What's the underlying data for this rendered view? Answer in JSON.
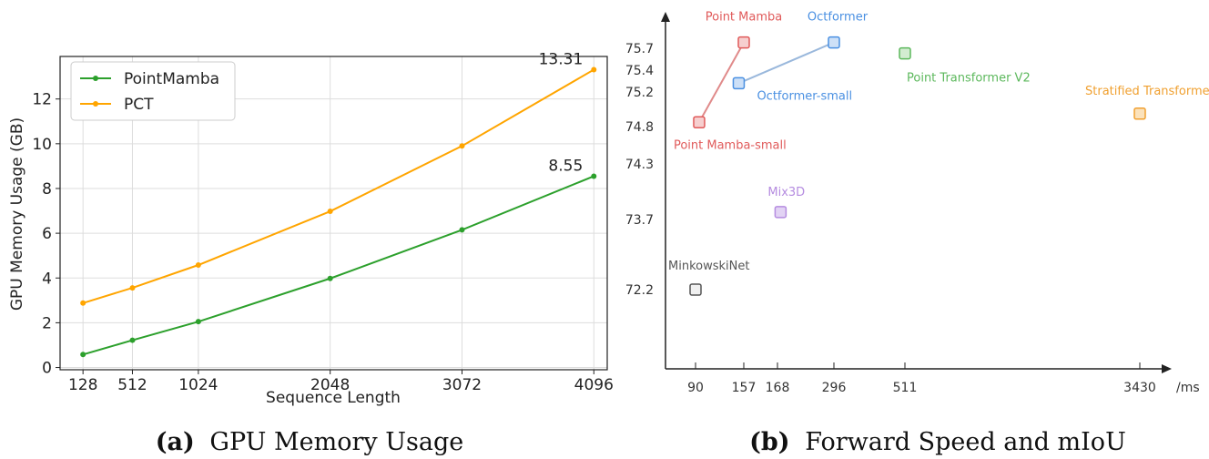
{
  "chart_data": [
    {
      "type": "line",
      "title": "",
      "caption": {
        "label": "(a)",
        "text": "GPU Memory Usage"
      },
      "xlabel": "Sequence Length",
      "ylabel": "GPU Memory Usage (GB)",
      "x": [
        128,
        512,
        1024,
        2048,
        3072,
        4096
      ],
      "x_tick_labels": [
        "128",
        "512",
        "1024",
        "2048",
        "3072",
        "4096"
      ],
      "y_ticks": [
        0,
        2,
        4,
        6,
        8,
        10,
        12
      ],
      "y_tick_labels": [
        "0",
        "2",
        "4",
        "6",
        "8",
        "10",
        "12"
      ],
      "ylim": [
        -0.1,
        13.9
      ],
      "xlim": [
        -50,
        4200
      ],
      "grid": true,
      "legend_position": "top-left",
      "series": [
        {
          "name": "PointMamba",
          "color": "#2ca02c",
          "values": [
            0.58,
            1.22,
            2.05,
            3.98,
            6.15,
            8.55
          ],
          "end_label": "8.55"
        },
        {
          "name": "PCT",
          "color": "#ffa500",
          "values": [
            2.88,
            3.56,
            4.58,
            6.98,
            9.9,
            13.31
          ],
          "end_label": "13.31"
        }
      ]
    },
    {
      "type": "scatter",
      "title": "",
      "caption": {
        "label": "(b)",
        "text": "Forward Speed and mIoU"
      },
      "x_unit_label": "/ms",
      "x_tick_labels": [
        "90",
        "157",
        "168",
        "296",
        "511",
        "3430"
      ],
      "y_tick_labels": [
        "75.7",
        "75.4",
        "75.2",
        "74.8",
        "74.3",
        "73.7",
        "72.2"
      ],
      "y_ticks": [
        75.7,
        75.4,
        75.2,
        74.8,
        74.3,
        73.7,
        72.2
      ],
      "grid": false,
      "points": [
        {
          "name": "Point Mamba",
          "x": 157,
          "y": 75.78,
          "color": "#e05a5a",
          "fill": "#f6cfcf"
        },
        {
          "name": "Octformer",
          "x": 296,
          "y": 75.78,
          "color": "#4a90e2",
          "fill": "#cde0f7"
        },
        {
          "name": "Point Transformer V2",
          "x": 511,
          "y": 75.63,
          "color": "#5cb85c",
          "fill": "#d3ecd1"
        },
        {
          "name": "Octformer-small",
          "x": 150,
          "y": 75.28,
          "color": "#4a90e2",
          "fill": "#cde0f7"
        },
        {
          "name": "Stratified Transformer",
          "x": 3430,
          "y": 74.95,
          "color": "#f0a030",
          "fill": "#fbe2bb"
        },
        {
          "name": "Point Mamba-small",
          "x": 95,
          "y": 74.85,
          "color": "#e05a5a",
          "fill": "#f6cfcf"
        },
        {
          "name": "Mix3D",
          "x": 175,
          "y": 73.78,
          "color": "#b58ce0",
          "fill": "#e2d3f4"
        },
        {
          "name": "MinkowskiNet",
          "x": 90,
          "y": 72.2,
          "color": "#555555",
          "fill": "#f0f0f0"
        }
      ],
      "connections": [
        {
          "from": "Point Mamba-small",
          "to": "Point Mamba",
          "color": "#e08a8a"
        },
        {
          "from": "Octformer-small",
          "to": "Octformer",
          "color": "#9ab8dc"
        }
      ]
    }
  ]
}
